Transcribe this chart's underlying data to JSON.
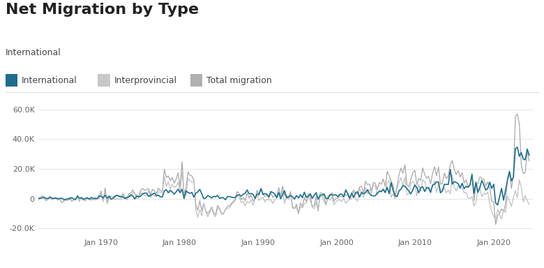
{
  "title": "Net Migration by Type",
  "subtitle": "International",
  "legend_labels": [
    "International",
    "Interprovincial",
    "Total migration"
  ],
  "legend_colors": [
    "#1b6e8e",
    "#c8c8c8",
    "#b0b0b0"
  ],
  "line_colors": {
    "international": "#1b6e8e",
    "interprovincial": "#c0c0c0",
    "total": "#a8a8a8"
  },
  "ylim": [
    -25000,
    65000
  ],
  "yticks": [
    -20000,
    0,
    20000,
    40000,
    60000
  ],
  "ytick_labels": [
    "-20.0K",
    "0",
    "20.0K",
    "40.0K",
    "60.0K"
  ],
  "xtick_years": [
    1970,
    1980,
    1990,
    2000,
    2010,
    2020
  ],
  "background_color": "#ffffff",
  "title_fontsize": 16,
  "subtitle_fontsize": 9,
  "legend_fontsize": 9,
  "tick_fontsize": 8
}
